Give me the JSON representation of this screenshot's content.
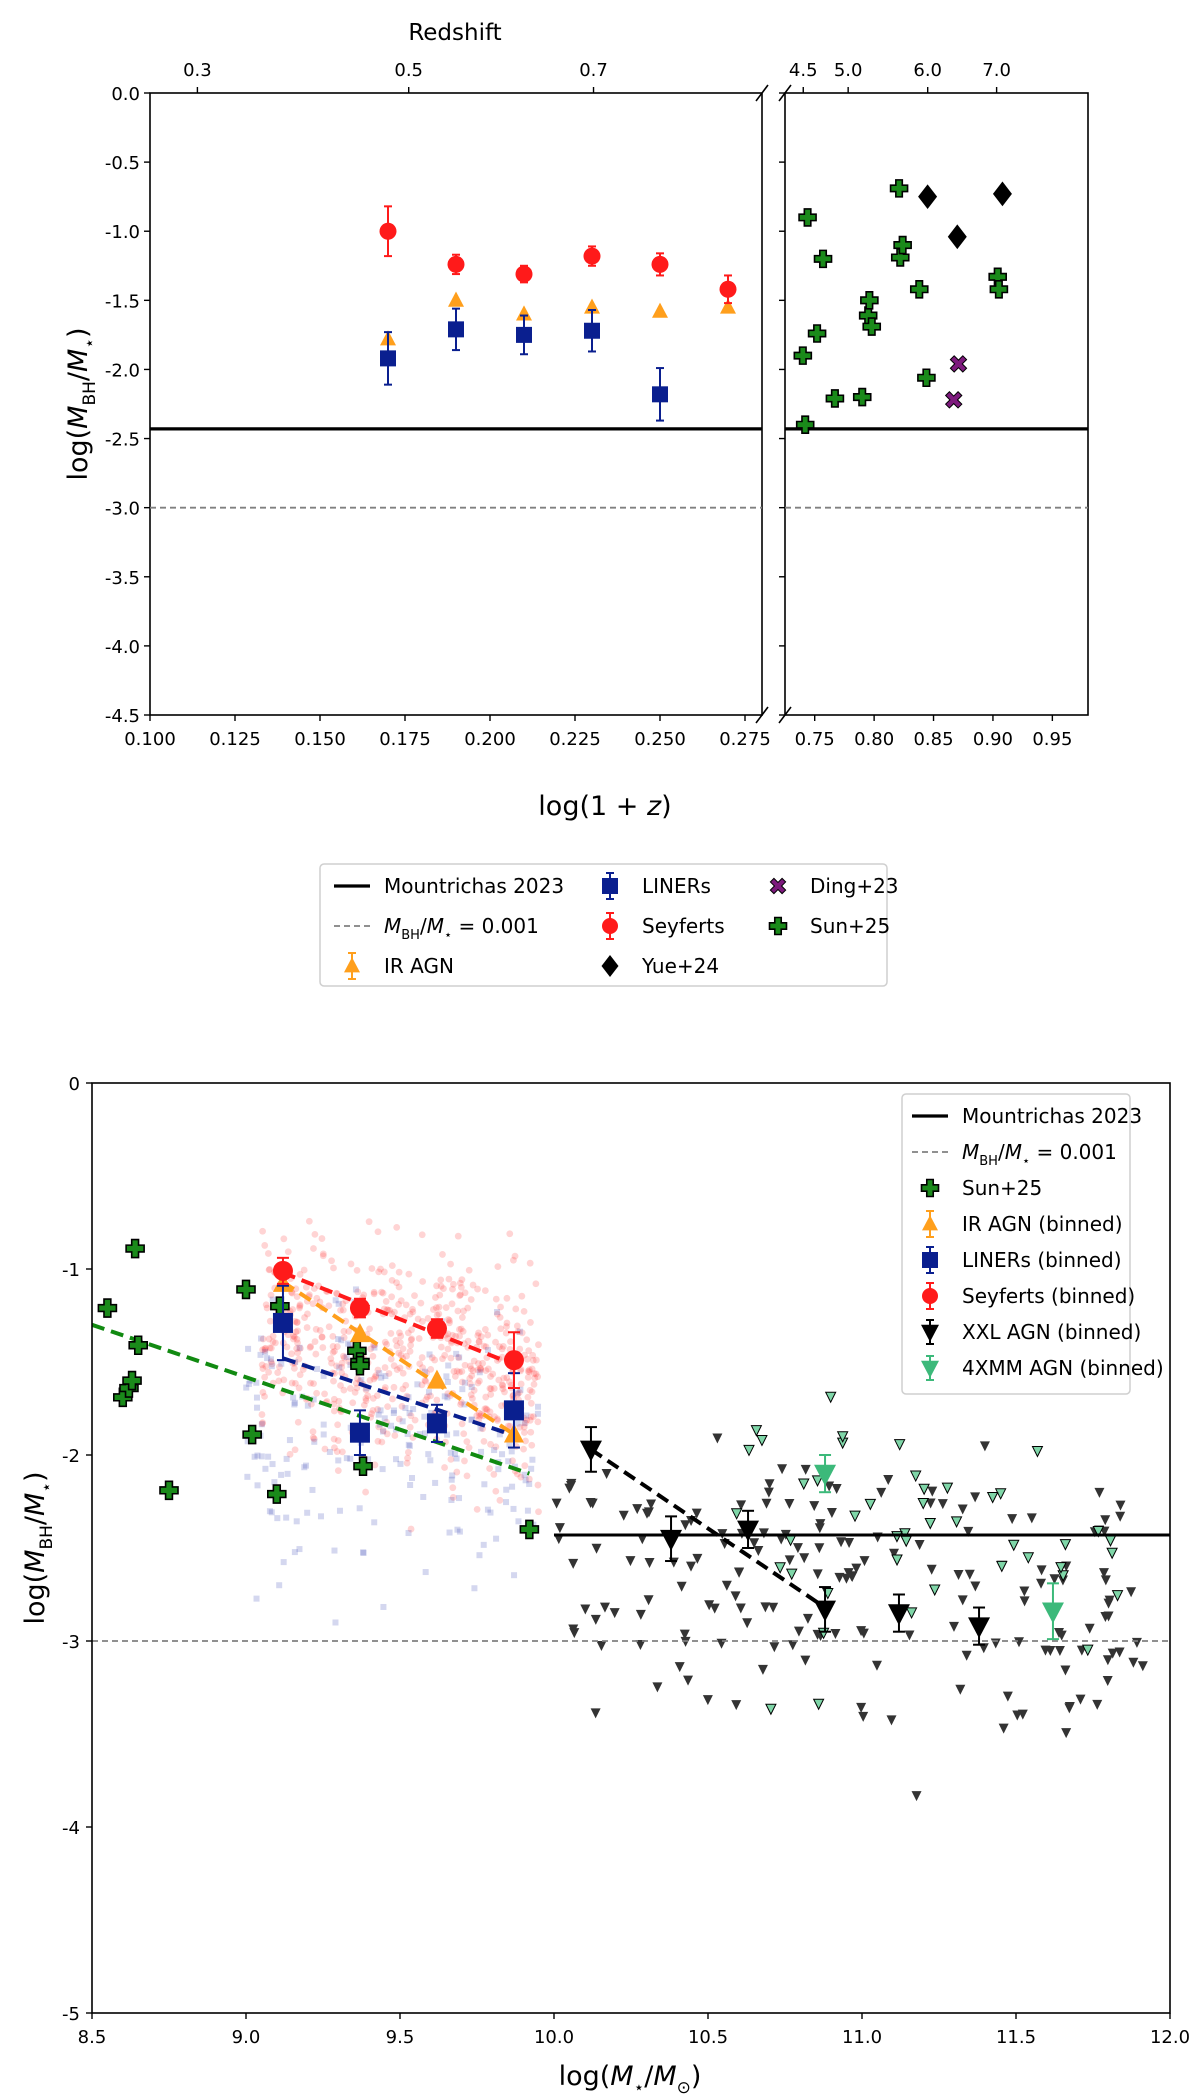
{
  "chart_data": [
    {
      "type": "scatter",
      "title": "",
      "xlabel": "log(1+z)",
      "ylabel": "log(M_BH/M_*)",
      "top_axis_label": "Redshift",
      "ylim": [
        -4.5,
        0.0
      ],
      "left_xlim": [
        0.1,
        0.28
      ],
      "right_xlim": [
        0.725,
        0.98
      ],
      "left_xticks": [
        "0.100",
        "0.125",
        "0.150",
        "0.175",
        "0.200",
        "0.225",
        "0.250",
        "0.275"
      ],
      "right_xticks": [
        "0.75",
        "0.80",
        "0.85",
        "0.90",
        "0.95"
      ],
      "yticks": [
        "0.0",
        "-0.5",
        "-1.0",
        "-1.5",
        "-2.0",
        "-2.5",
        "-3.0",
        "-3.5",
        "-4.0",
        "-4.5"
      ],
      "left_top_ticks": [
        "0.3",
        "0.5",
        "0.7"
      ],
      "right_top_ticks": [
        "4.5",
        "5.0",
        "6.0",
        "7.0"
      ],
      "reference_lines": [
        {
          "name": "Mountrichas 2023",
          "y": -2.43
        },
        {
          "name": "M_BH/M_* = 0.001",
          "y": -3.0
        }
      ],
      "series": [
        {
          "name": "IR AGN",
          "x": [
            0.17,
            0.19,
            0.21,
            0.23,
            0.25,
            0.27
          ],
          "y": [
            -1.78,
            -1.5,
            -1.6,
            -1.55,
            -1.58,
            -1.55
          ]
        },
        {
          "name": "LINERs",
          "x": [
            0.17,
            0.19,
            0.21,
            0.23,
            0.25
          ],
          "y": [
            -1.92,
            -1.71,
            -1.75,
            -1.72,
            -2.18
          ],
          "err": [
            0.19,
            0.15,
            0.14,
            0.15,
            0.19
          ]
        },
        {
          "name": "Seyferts",
          "x": [
            0.17,
            0.19,
            0.21,
            0.23,
            0.25,
            0.27
          ],
          "y": [
            -1.0,
            -1.24,
            -1.31,
            -1.18,
            -1.24,
            -1.42
          ],
          "err": [
            0.18,
            0.07,
            0.06,
            0.07,
            0.08,
            0.1
          ]
        },
        {
          "name": "Yue+24",
          "x": [
            0.845,
            0.87,
            0.908
          ],
          "y": [
            -0.75,
            -1.04,
            -0.73
          ]
        },
        {
          "name": "Ding+23",
          "x": [
            0.867,
            0.871
          ],
          "y": [
            -2.22,
            -1.96
          ]
        },
        {
          "name": "Sun+25",
          "x": [
            0.74,
            0.742,
            0.744,
            0.752,
            0.757,
            0.767,
            0.79,
            0.795,
            0.796,
            0.798,
            0.821,
            0.822,
            0.824,
            0.838,
            0.844,
            0.904,
            0.905
          ],
          "y": [
            -1.9,
            -2.4,
            -0.9,
            -1.74,
            -1.2,
            -2.21,
            -2.2,
            -1.61,
            -1.5,
            -1.69,
            -0.69,
            -1.19,
            -1.1,
            -1.42,
            -2.06,
            -1.33,
            -1.42
          ]
        }
      ]
    },
    {
      "type": "scatter",
      "title": "",
      "xlabel": "log(M_*/M_⊙)",
      "ylabel": "log(M_BH/M_*)",
      "xlim": [
        8.5,
        12.0
      ],
      "ylim": [
        -5,
        0
      ],
      "xticks": [
        "8.5",
        "9.0",
        "9.5",
        "10.0",
        "10.5",
        "11.0",
        "11.5",
        "12.0"
      ],
      "yticks": [
        "0",
        "-1",
        "-2",
        "-3",
        "-4",
        "-5"
      ],
      "reference_lines": [
        {
          "name": "Mountrichas 2023",
          "y": -2.43,
          "x_range": [
            10.0,
            12.0
          ]
        },
        {
          "name": "M_BH/M_* = 0.001",
          "y": -3.0
        }
      ],
      "fits": [
        {
          "name": "Seyferts fit",
          "x": [
            9.12,
            9.88
          ],
          "y": [
            -1.02,
            -1.52
          ]
        },
        {
          "name": "IR AGN fit",
          "x": [
            9.12,
            9.88
          ],
          "y": [
            -1.07,
            -1.9
          ]
        },
        {
          "name": "LINERs fit",
          "x": [
            9.12,
            9.88
          ],
          "y": [
            -1.48,
            -1.9
          ]
        },
        {
          "name": "Sun+25 fit",
          "x": [
            8.5,
            9.92
          ],
          "y": [
            -1.3,
            -2.1
          ]
        },
        {
          "name": "XXL AGN fit",
          "x": [
            10.12,
            10.88
          ],
          "y": [
            -1.97,
            -2.82
          ]
        }
      ],
      "series": [
        {
          "name": "Sun+25",
          "x": [
            8.55,
            8.6,
            8.62,
            8.63,
            8.64,
            8.65,
            8.75,
            9.0,
            9.02,
            9.1,
            9.11,
            9.36,
            9.37,
            9.37,
            9.38,
            9.92
          ],
          "y": [
            -1.21,
            -1.69,
            -1.64,
            -1.6,
            -0.89,
            -1.41,
            -2.19,
            -1.11,
            -1.89,
            -2.21,
            -1.2,
            -1.44,
            -1.5,
            -1.52,
            -2.06,
            -2.4
          ]
        },
        {
          "name": "IR AGN (binned)",
          "x": [
            9.12,
            9.37,
            9.62,
            9.87
          ],
          "y": [
            -1.08,
            -1.35,
            -1.6,
            -1.89
          ]
        },
        {
          "name": "LINERs (binned)",
          "x": [
            9.12,
            9.37,
            9.62,
            9.87
          ],
          "y": [
            -1.29,
            -1.88,
            -1.83,
            -1.76
          ],
          "err": [
            0.2,
            0.12,
            0.1,
            0.2
          ]
        },
        {
          "name": "Seyferts (binned)",
          "x": [
            9.12,
            9.37,
            9.62,
            9.87
          ],
          "y": [
            -1.01,
            -1.21,
            -1.32,
            -1.49
          ],
          "err": [
            0.07,
            0.05,
            0.05,
            0.15
          ]
        },
        {
          "name": "XXL AGN (binned)",
          "x": [
            10.12,
            10.38,
            10.63,
            10.88,
            11.12,
            11.38
          ],
          "y": [
            -1.97,
            -2.45,
            -2.4,
            -2.83,
            -2.85,
            -2.92
          ],
          "err": [
            0.12,
            0.12,
            0.1,
            0.12,
            0.1,
            0.1
          ]
        },
        {
          "name": "4XMM AGN (binned)",
          "x": [
            10.88,
            11.62
          ],
          "y": [
            -2.1,
            -2.84
          ],
          "err": [
            0.1,
            0.15
          ]
        }
      ]
    }
  ],
  "legend1": {
    "items": [
      {
        "label": "Mountrichas 2023",
        "marker": "line-solid"
      },
      {
        "label": "LINERs",
        "marker": "square-blue"
      },
      {
        "label": "Ding+23",
        "marker": "x-purple"
      },
      {
        "label": "M_BH/M_* = 0.001",
        "marker": "line-dashed"
      },
      {
        "label": "Seyferts",
        "marker": "circle-red"
      },
      {
        "label": "Sun+25",
        "marker": "plus-green"
      },
      {
        "label": "IR AGN",
        "marker": "triangle-orange"
      },
      {
        "label": "Yue+24",
        "marker": "diamond-black"
      }
    ]
  },
  "legend2": {
    "items": [
      {
        "label": "Mountrichas 2023",
        "marker": "line-solid"
      },
      {
        "label": "M_BH/M_* = 0.001",
        "marker": "line-dashed"
      },
      {
        "label": "Sun+25",
        "marker": "plus-green"
      },
      {
        "label": "IR AGN (binned)",
        "marker": "triangle-orange"
      },
      {
        "label": "LINERs (binned)",
        "marker": "square-blue"
      },
      {
        "label": "Seyferts (binned)",
        "marker": "circle-red"
      },
      {
        "label": "XXL AGN (binned)",
        "marker": "triangledown-black"
      },
      {
        "label": "4XMM AGN (binned)",
        "marker": "triangledown-teal"
      }
    ]
  },
  "colors": {
    "ir_agn": "#ff9f1c",
    "liners": "#0a1f8f",
    "seyferts": "#ff1a1a",
    "yue": "#000000",
    "ding": "#7d1a7d",
    "sun": "#1a8a1a",
    "xxl": "#000000",
    "xmm": "#3cb97a",
    "fit_sun": "#118a11"
  }
}
